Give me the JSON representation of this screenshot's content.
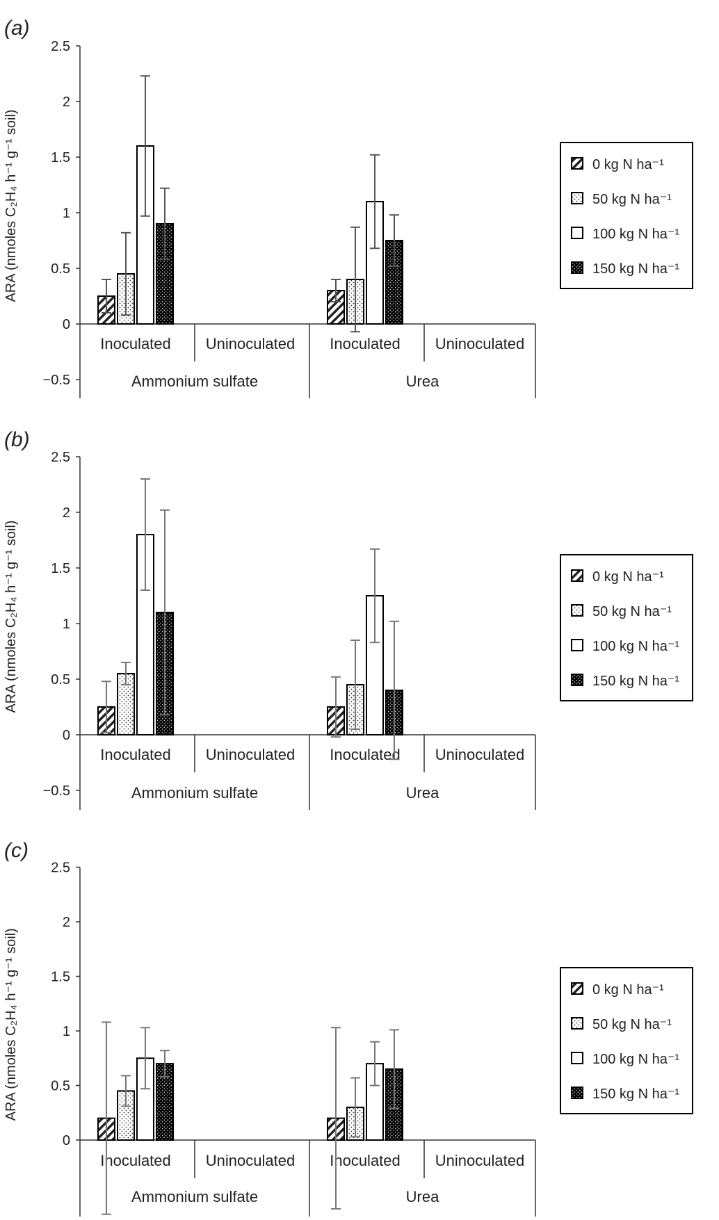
{
  "figure": {
    "legend_entries": [
      "0 kg N ha⁻¹",
      "50 kg N ha⁻¹",
      "100 kg N ha⁻¹",
      "150 kg N ha⁻¹"
    ]
  },
  "chart_data": [
    {
      "type": "bar",
      "panel_label": "(a)",
      "ylabel": "ARA (nmoles C₂H₄ h⁻¹ g⁻¹ soil)",
      "ylim": [
        -0.5,
        2.5
      ],
      "yticks": [
        "2.5",
        "2",
        "1.5",
        "1",
        "0.5",
        "0",
        "−0.5"
      ],
      "groups": [
        "Ammonium sulfate",
        "Urea"
      ],
      "categories": [
        "Inoculated",
        "Uninoculated",
        "Inoculated",
        "Uninoculated"
      ],
      "series": [
        {
          "name": "0 kg N ha⁻¹",
          "values": [
            0.25,
            null,
            0.3,
            null
          ],
          "errors": [
            0.15,
            null,
            0.1,
            null
          ]
        },
        {
          "name": "50 kg N ha⁻¹",
          "values": [
            0.45,
            null,
            0.4,
            null
          ],
          "errors": [
            0.37,
            null,
            0.47,
            null
          ]
        },
        {
          "name": "100 kg N ha⁻¹",
          "values": [
            1.6,
            null,
            1.1,
            null
          ],
          "errors": [
            0.63,
            null,
            0.42,
            null
          ]
        },
        {
          "name": "150 kg N ha⁻¹",
          "values": [
            0.9,
            null,
            0.75,
            null
          ],
          "errors": [
            0.32,
            null,
            0.23,
            null
          ]
        }
      ],
      "legend_position": "right"
    },
    {
      "type": "bar",
      "panel_label": "(b)",
      "ylabel": "ARA (nmoles C₂H₄ h⁻¹ g⁻¹ soil)",
      "ylim": [
        -0.5,
        2.5
      ],
      "yticks": [
        "2.5",
        "2",
        "1.5",
        "1",
        "0.5",
        "0",
        "−0.5"
      ],
      "groups": [
        "Ammonium sulfate",
        "Urea"
      ],
      "categories": [
        "Inoculated",
        "Uninoculated",
        "Inoculated",
        "Uninoculated"
      ],
      "series": [
        {
          "name": "0 kg N ha⁻¹",
          "values": [
            0.25,
            null,
            0.25,
            null
          ],
          "errors": [
            0.23,
            null,
            0.27,
            null
          ]
        },
        {
          "name": "50 kg N ha⁻¹",
          "values": [
            0.55,
            null,
            0.45,
            null
          ],
          "errors": [
            0.1,
            null,
            0.4,
            null
          ]
        },
        {
          "name": "100 kg N ha⁻¹",
          "values": [
            1.8,
            null,
            1.25,
            null
          ],
          "errors": [
            0.5,
            null,
            0.42,
            null
          ]
        },
        {
          "name": "150 kg N ha⁻¹",
          "values": [
            1.1,
            null,
            0.4,
            null
          ],
          "errors": [
            0.92,
            null,
            0.62,
            null
          ]
        }
      ],
      "legend_position": "right"
    },
    {
      "type": "bar",
      "panel_label": "(c)",
      "ylabel": "ARA (nmoles C₂H₄ h⁻¹ g⁻¹ soil)",
      "ylim": [
        0,
        2.5
      ],
      "yticks": [
        "2.5",
        "2",
        "1.5",
        "1",
        "0.5",
        "0"
      ],
      "groups": [
        "Ammonium sulfate",
        "Urea"
      ],
      "categories": [
        "Inoculated",
        "Uninoculated",
        "Inoculated",
        "Uninoculated"
      ],
      "series": [
        {
          "name": "0 kg N ha⁻¹",
          "values": [
            0.2,
            null,
            0.2,
            null
          ],
          "errors": [
            0.88,
            null,
            0.83,
            null
          ]
        },
        {
          "name": "50 kg N ha⁻¹",
          "values": [
            0.45,
            null,
            0.3,
            null
          ],
          "errors": [
            0.14,
            null,
            0.27,
            null
          ]
        },
        {
          "name": "100 kg N ha⁻¹",
          "values": [
            0.75,
            null,
            0.7,
            null
          ],
          "errors": [
            0.28,
            null,
            0.2,
            null
          ]
        },
        {
          "name": "150 kg N ha⁻¹",
          "values": [
            0.7,
            null,
            0.65,
            null
          ],
          "errors": [
            0.12,
            null,
            0.36,
            null
          ]
        }
      ],
      "legend_position": "right"
    }
  ]
}
